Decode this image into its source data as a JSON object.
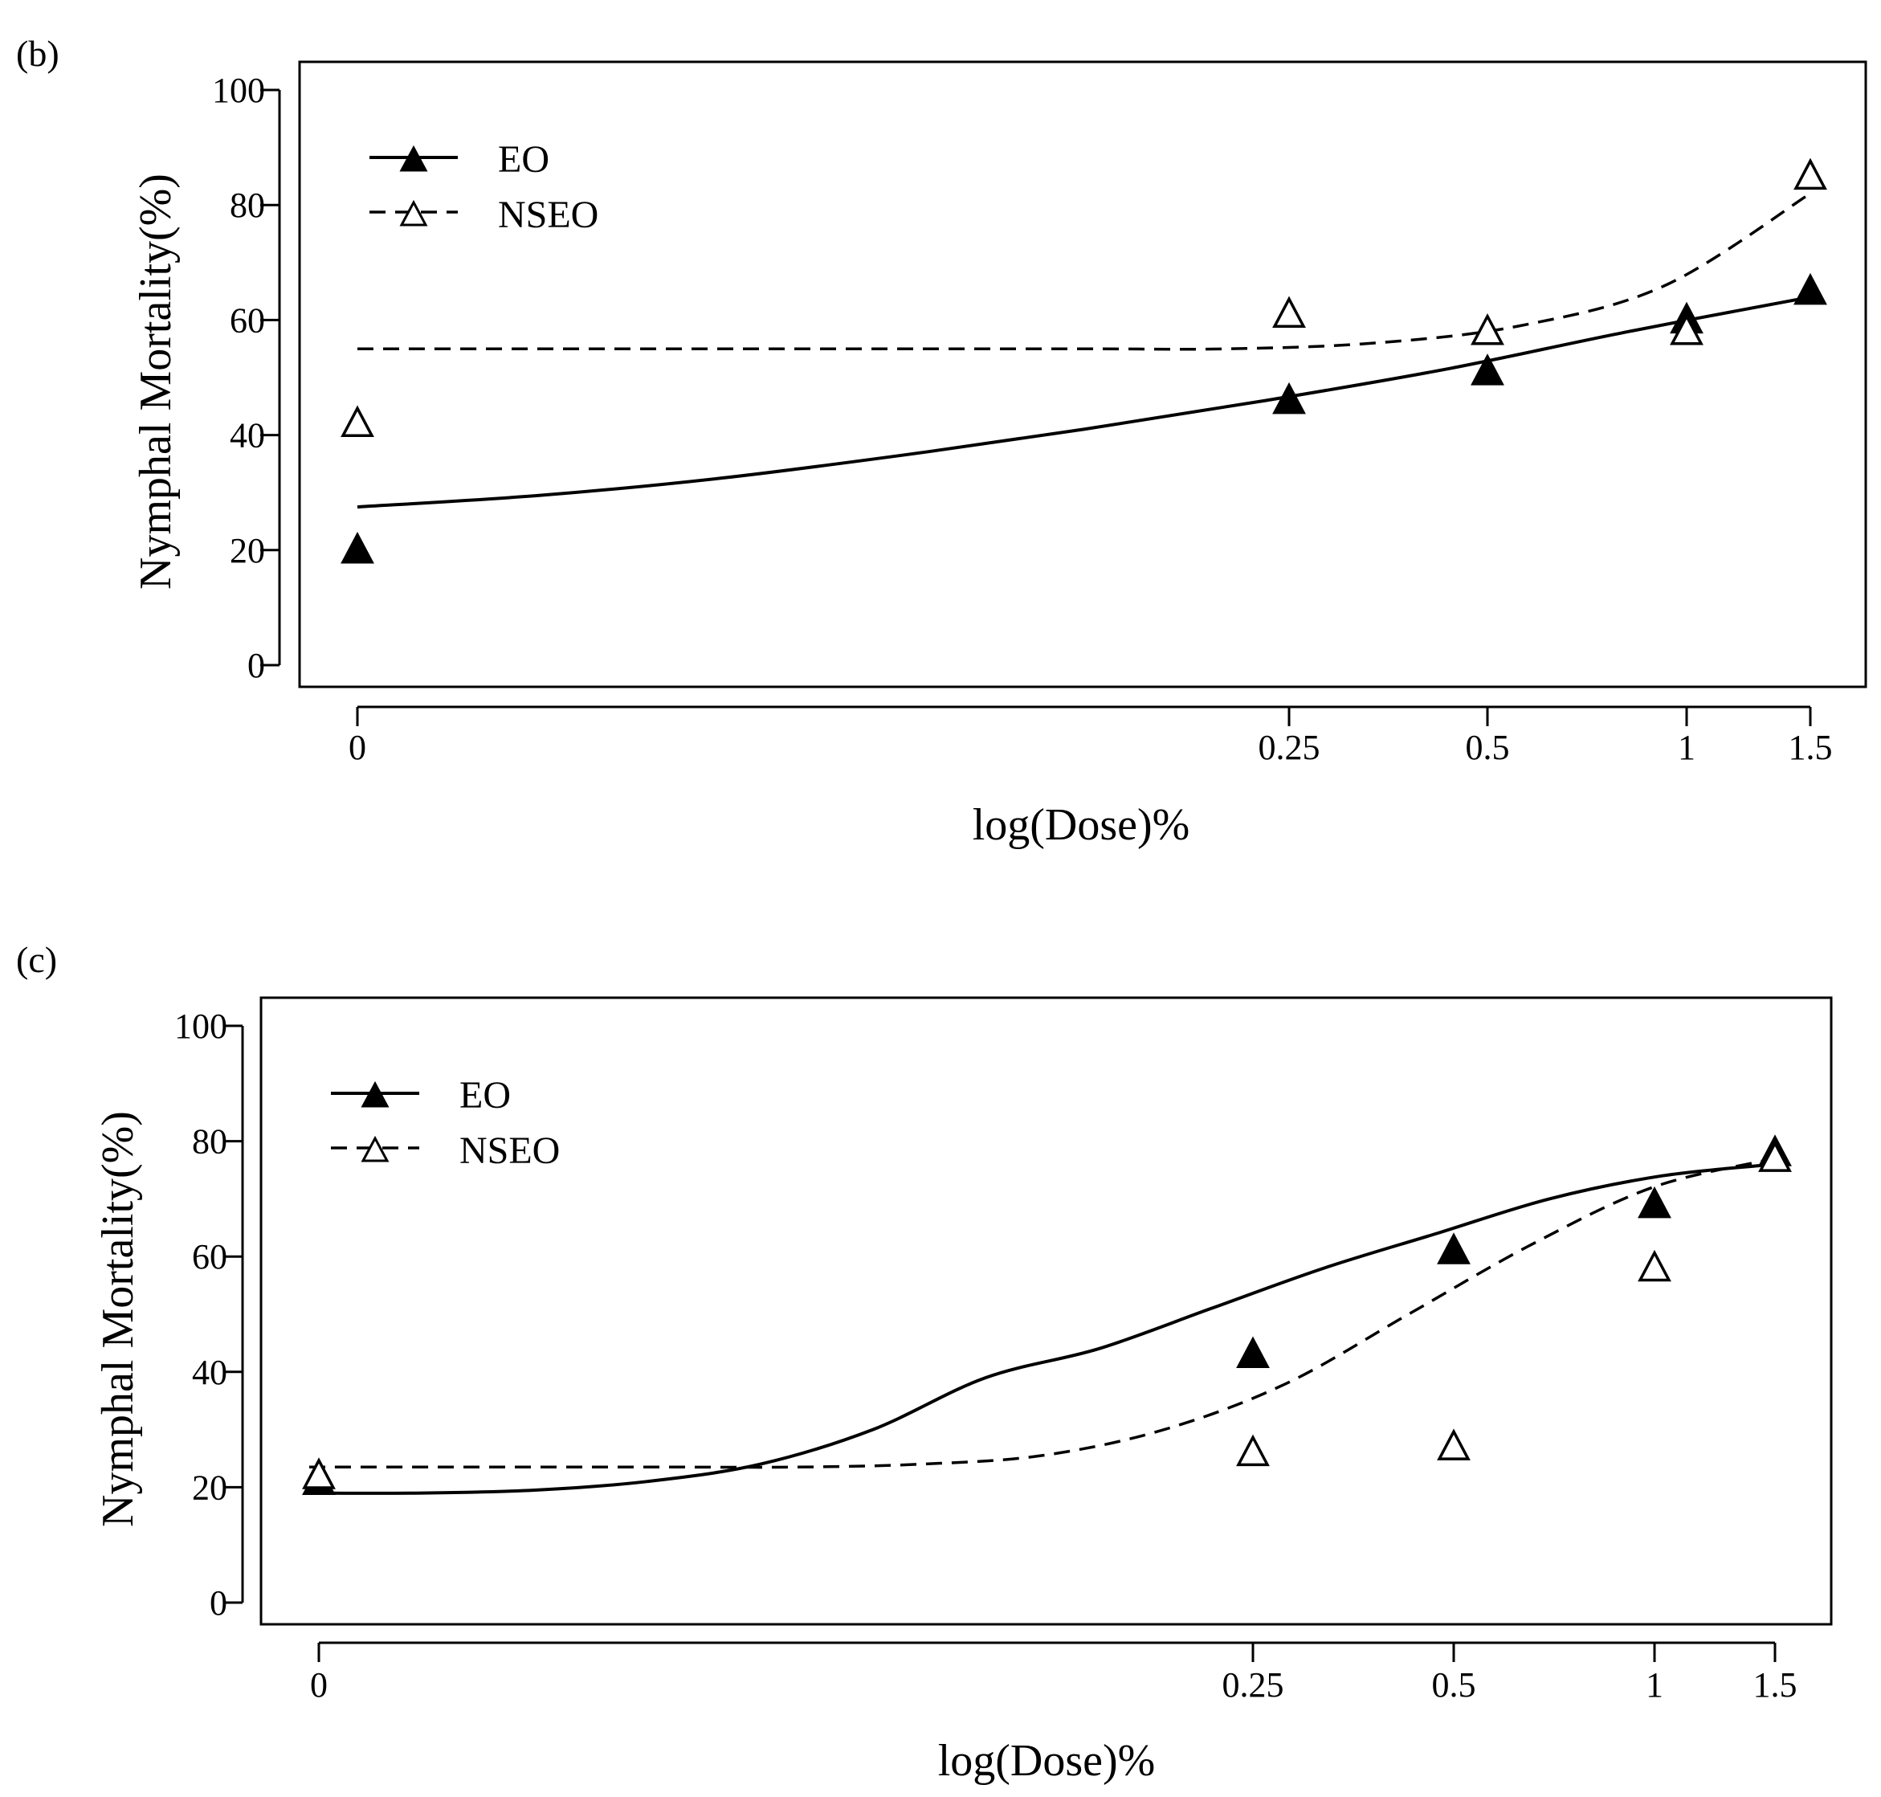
{
  "chart_data": [
    {
      "panel": "(b)",
      "type": "line",
      "xlabel": "log(Dose)%",
      "ylabel": "Nymphal Mortality(%)",
      "ylim": [
        0,
        100
      ],
      "yticks": [
        0,
        20,
        40,
        60,
        80,
        100
      ],
      "xticks": [
        "0",
        "0.25",
        "0.5",
        "1",
        "1.5"
      ],
      "legend": {
        "placement": "top-left",
        "entries": [
          "EO",
          "NSEO"
        ]
      },
      "series": [
        {
          "name": "EO",
          "marker": "filled-triangle",
          "line": "solid",
          "points": [
            20,
            46,
            51,
            60,
            65
          ],
          "fit": [
            27.5,
            29.5,
            32.5,
            36.5,
            41,
            46,
            51.5,
            58,
            64
          ]
        },
        {
          "name": "NSEO",
          "marker": "open-triangle",
          "line": "dashed",
          "points": [
            42,
            61,
            58,
            58,
            85
          ],
          "fit": [
            55,
            55,
            55,
            55,
            55,
            55,
            55,
            56,
            59,
            66,
            82
          ]
        }
      ]
    },
    {
      "panel": "(c)",
      "type": "line",
      "xlabel": "log(Dose)%",
      "ylabel": "Nymphal Mortality(%)",
      "ylim": [
        0,
        100
      ],
      "yticks": [
        0,
        20,
        40,
        60,
        80,
        100
      ],
      "xticks": [
        "0",
        "0.25",
        "0.5",
        "1",
        "1.5"
      ],
      "legend": {
        "placement": "top-left",
        "entries": [
          "EO",
          "NSEO"
        ]
      },
      "series": [
        {
          "name": "EO",
          "marker": "filled-triangle",
          "line": "solid",
          "points": [
            21,
            43,
            61,
            69,
            78
          ],
          "fit": [
            19,
            19,
            19.5,
            21,
            24,
            30,
            39,
            44,
            51,
            58,
            64,
            70,
            74,
            76
          ]
        },
        {
          "name": "NSEO",
          "marker": "open-triangle",
          "line": "dashed",
          "points": [
            22,
            26,
            27,
            58,
            77
          ],
          "fit": [
            23.5,
            23.5,
            23.5,
            23.5,
            23.5,
            24,
            25.5,
            30,
            38,
            50,
            62,
            72,
            77
          ]
        }
      ]
    }
  ]
}
